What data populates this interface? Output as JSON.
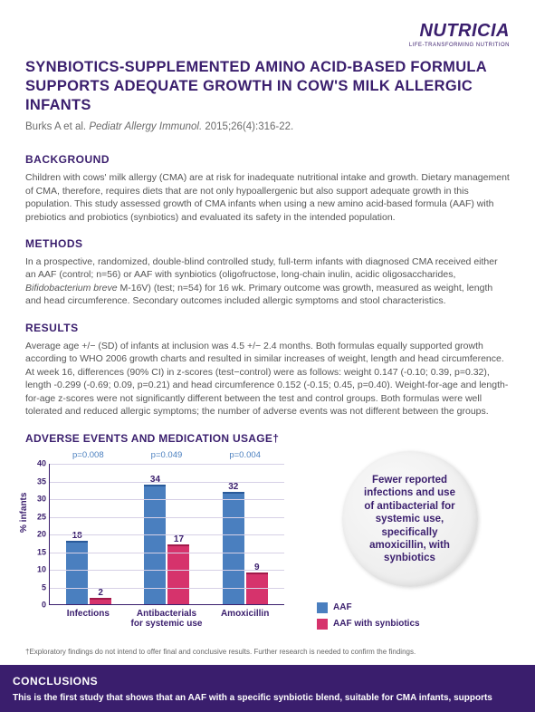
{
  "brand": {
    "name": "NUTRICIA",
    "tagline": "LIFE-TRANSFORMING NUTRITION"
  },
  "title": "SYNBIOTICS-SUPPLEMENTED AMINO ACID-BASED FORMULA SUPPORTS ADEQUATE GROWTH IN COW'S MILK ALLERGIC INFANTS",
  "citation": {
    "authors": "Burks A et al.",
    "journal": "Pediatr Allergy Immunol.",
    "ref": "2015;26(4):316-22."
  },
  "sections": {
    "background": {
      "heading": "BACKGROUND",
      "text": "Children with cows' milk allergy (CMA) are at risk for inadequate nutritional intake and growth. Dietary management of CMA, therefore, requires diets that are not only hypoallergenic but also support adequate growth in this population. This study assessed growth of CMA infants when using a new amino acid-based formula (AAF) with prebiotics and probiotics (synbiotics) and evaluated its safety in the intended population."
    },
    "methods": {
      "heading": "METHODS",
      "text_before": "In a prospective, randomized, double-blind controlled study, full-term infants with diagnosed CMA received either an AAF (control; n=56) or AAF with synbiotics (oligofructose, long-chain inulin, acidic oligosaccharides, ",
      "italic": "Bifidobacterium breve",
      "text_after": " M-16V) (test; n=54) for 16 wk. Primary outcome was growth, measured as weight, length and head circumference. Secondary outcomes included allergic symptoms and stool characteristics."
    },
    "results": {
      "heading": "RESULTS",
      "text": "Average age +/− (SD) of infants at inclusion was 4.5 +/− 2.4 months. Both formulas equally supported growth according to WHO 2006 growth charts and resulted in similar increases of weight, length and head circumference. At week 16, differences (90% CI) in z-scores (test−control) were as follows: weight 0.147 (-0.10; 0.39, p=0.32), length -0.299 (-0.69; 0.09, p=0.21) and head circumference 0.152 (-0.15; 0.45, p=0.40). Weight-for-age and length-for-age z-scores were not significantly different between the test and control groups. Both formulas were well tolerated and reduced allergic symptoms; the number of adverse events was not different between the groups."
    }
  },
  "chart": {
    "title": "ADVERSE EVENTS AND MEDICATION USAGE†",
    "ylabel": "% infants",
    "ymax": 40,
    "ytick_step": 5,
    "colors": {
      "aaf": "#4a7fbf",
      "syn": "#d6336c",
      "axis": "#3a1e6d",
      "grid": "#d6d0e6"
    },
    "categories": [
      {
        "label": "Infections",
        "pval": "p=0.008",
        "aaf": 18,
        "syn": 2
      },
      {
        "label": "Antibacterials for systemic use",
        "pval": "p=0.049",
        "aaf": 34,
        "syn": 17
      },
      {
        "label": "Amoxicillin",
        "pval": "p=0.004",
        "aaf": 32,
        "syn": 9
      }
    ],
    "legend": {
      "aaf": "AAF",
      "syn": "AAF with synbiotics"
    }
  },
  "callout": "Fewer reported infections and use of antibacterial for systemic use, specifically amoxicillin, with synbiotics",
  "footnote": "†Exploratory findings do not intend to offer final and conclusive results. Further research is needed to confirm the findings.",
  "conclusions": {
    "heading": "CONCLUSIONS",
    "text": "This is the first study that shows that an AAF with a specific synbiotic blend, suitable for CMA infants, supports"
  }
}
